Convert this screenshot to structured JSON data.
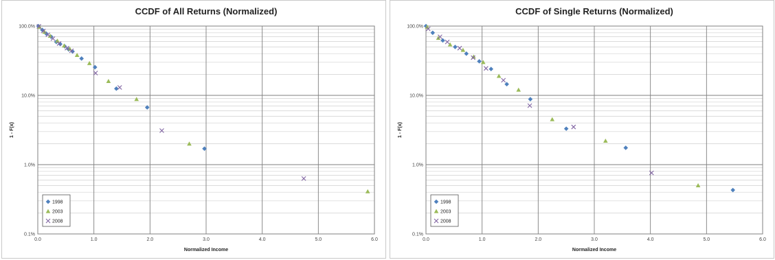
{
  "colors": {
    "s1998": "#4f81bd",
    "s2003": "#9bbb59",
    "s2008": "#8064a2",
    "grid": "#7f7f7f",
    "minor": "#d0d0d0"
  },
  "chart_data": [
    {
      "type": "scatter",
      "title": "CCDF of All Returns (Normalized)",
      "xlabel": "Normalized Income",
      "ylabel": "1 - F(x)",
      "xlim": [
        0,
        6
      ],
      "ylim": [
        0.001,
        1
      ],
      "yscale": "log",
      "xticks": [
        "0.0",
        "1.0",
        "2.0",
        "3.0",
        "4.0",
        "5.0",
        "6.0"
      ],
      "yticks": [
        "100.0%",
        "10.0%",
        "1.0%",
        "0.1%"
      ],
      "legend": "bottom-left",
      "series": [
        {
          "name": "1998",
          "marker": "diamond",
          "x": [
            0.01,
            0.08,
            0.15,
            0.24,
            0.33,
            0.4,
            0.48,
            0.55,
            0.62,
            0.78,
            1.02,
            1.4,
            1.95,
            2.97
          ],
          "y": [
            1.0,
            0.88,
            0.78,
            0.7,
            0.59,
            0.55,
            0.51,
            0.46,
            0.43,
            0.34,
            0.255,
            0.125,
            0.067,
            0.017
          ]
        },
        {
          "name": "2003",
          "marker": "triangle",
          "x": [
            0.03,
            0.12,
            0.22,
            0.35,
            0.47,
            0.57,
            0.7,
            0.92,
            1.26,
            1.76,
            2.7,
            5.88
          ],
          "y": [
            0.97,
            0.82,
            0.72,
            0.61,
            0.52,
            0.47,
            0.38,
            0.29,
            0.16,
            0.088,
            0.02,
            0.0041
          ]
        },
        {
          "name": "2008",
          "marker": "x",
          "x": [
            0.02,
            0.1,
            0.18,
            0.27,
            0.38,
            0.52,
            0.6,
            1.03,
            1.46,
            2.21,
            4.74
          ],
          "y": [
            0.99,
            0.85,
            0.75,
            0.66,
            0.56,
            0.48,
            0.44,
            0.21,
            0.13,
            0.031,
            0.0063
          ]
        }
      ]
    },
    {
      "type": "scatter",
      "title": "CCDF of Single Returns (Normalized)",
      "xlabel": "Normalized Income",
      "ylabel": "1 - F(x)",
      "xlim": [
        0,
        6
      ],
      "ylim": [
        0.001,
        1
      ],
      "yscale": "log",
      "xticks": [
        "0.0",
        "1.0",
        "2.0",
        "3.0",
        "4.0",
        "5.0",
        "6.0"
      ],
      "yticks": [
        "100.0%",
        "10.0%",
        "1.0%",
        "0.1%"
      ],
      "legend": "bottom-left",
      "series": [
        {
          "name": "1998",
          "marker": "diamond",
          "x": [
            0.0,
            0.12,
            0.3,
            0.52,
            0.72,
            0.95,
            1.16,
            1.44,
            1.86,
            2.5,
            3.56,
            5.47
          ],
          "y": [
            1.0,
            0.8,
            0.62,
            0.5,
            0.4,
            0.31,
            0.24,
            0.145,
            0.088,
            0.033,
            0.0175,
            0.0043
          ]
        },
        {
          "name": "2003",
          "marker": "triangle",
          "x": [
            0.02,
            0.22,
            0.43,
            0.66,
            0.85,
            1.02,
            1.3,
            1.65,
            2.25,
            3.2,
            4.85
          ],
          "y": [
            0.97,
            0.67,
            0.54,
            0.45,
            0.36,
            0.3,
            0.19,
            0.12,
            0.045,
            0.022,
            0.005
          ]
        },
        {
          "name": "2008",
          "marker": "x",
          "x": [
            0.04,
            0.25,
            0.38,
            0.6,
            0.84,
            1.07,
            1.38,
            1.85,
            2.63,
            4.02
          ],
          "y": [
            0.91,
            0.7,
            0.59,
            0.48,
            0.35,
            0.245,
            0.165,
            0.071,
            0.035,
            0.0076
          ]
        }
      ]
    }
  ]
}
